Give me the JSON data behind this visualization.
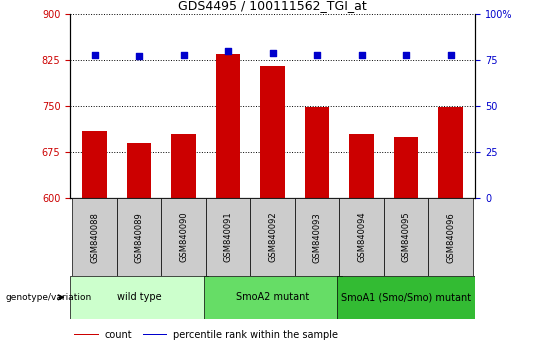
{
  "title": "GDS4495 / 100111562_TGI_at",
  "samples": [
    "GSM840088",
    "GSM840089",
    "GSM840090",
    "GSM840091",
    "GSM840092",
    "GSM840093",
    "GSM840094",
    "GSM840095",
    "GSM840096"
  ],
  "counts": [
    710,
    690,
    705,
    835,
    815,
    748,
    705,
    700,
    748
  ],
  "percentile_ranks": [
    78,
    77,
    78,
    80,
    79,
    78,
    78,
    78,
    78
  ],
  "ylim_left": [
    600,
    900
  ],
  "ylim_right": [
    0,
    100
  ],
  "yticks_left": [
    600,
    675,
    750,
    825,
    900
  ],
  "yticks_right": [
    0,
    25,
    50,
    75,
    100
  ],
  "bar_color": "#CC0000",
  "dot_color": "#0000CC",
  "groups": [
    {
      "label": "wild type",
      "start": 0,
      "end": 3,
      "color": "#ccffcc"
    },
    {
      "label": "SmoA2 mutant",
      "start": 3,
      "end": 6,
      "color": "#66dd66"
    },
    {
      "label": "SmoA1 (Smo/Smo) mutant",
      "start": 6,
      "end": 9,
      "color": "#33bb33"
    }
  ],
  "group_label_prefix": "genotype/variation",
  "legend_count_label": "count",
  "legend_percentile_label": "percentile rank within the sample",
  "sample_box_color": "#cccccc",
  "figsize": [
    5.4,
    3.54
  ],
  "dpi": 100
}
